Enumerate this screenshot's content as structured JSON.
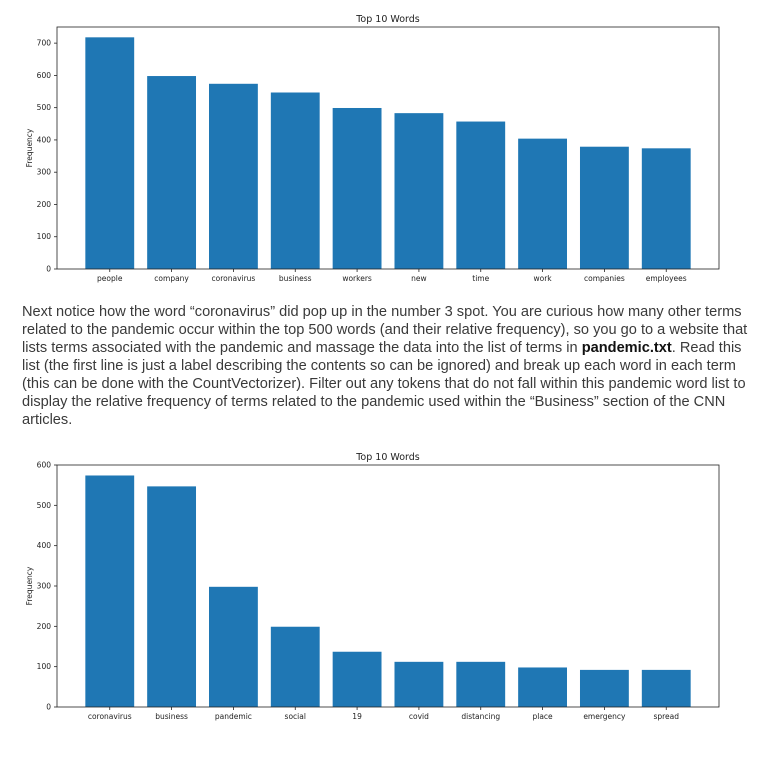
{
  "chart_data": [
    {
      "type": "bar",
      "title": "Top 10 Words",
      "xlabel": "",
      "ylabel": "Frequency",
      "categories": [
        "people",
        "company",
        "coronavirus",
        "business",
        "workers",
        "new",
        "time",
        "work",
        "companies",
        "employees"
      ],
      "values": [
        718,
        598,
        574,
        547,
        499,
        483,
        457,
        404,
        379,
        374
      ],
      "ylim": [
        0,
        750
      ],
      "yticks": [
        0,
        100,
        200,
        300,
        400,
        500,
        600,
        700
      ],
      "color": "#1f77b4",
      "grid": false,
      "legend": "none"
    },
    {
      "type": "bar",
      "title": "Top 10 Words",
      "xlabel": "",
      "ylabel": "Frequency",
      "categories": [
        "coronavirus",
        "business",
        "pandemic",
        "social",
        "19",
        "covid",
        "distancing",
        "place",
        "emergency",
        "spread"
      ],
      "values": [
        574,
        547,
        298,
        199,
        137,
        112,
        112,
        98,
        92,
        92
      ],
      "ylim": [
        0,
        600
      ],
      "yticks": [
        0,
        100,
        200,
        300,
        400,
        500,
        600
      ],
      "color": "#1f77b4",
      "grid": false,
      "legend": "none"
    }
  ],
  "paragraph": {
    "part1": "Next notice how the word “coronavirus” did pop up in the number 3 spot.  You are curious how many other terms related to the pandemic occur within the top 500 words (and their relative frequency), so you go to a website that lists terms associated with the pandemic and massage the data into the list of terms in ",
    "filename": "pandemic.txt",
    "part2": ".  Read this list (the first line is just a label describing the contents so can be ignored) and break up each word in each term (this can be done with the CountVectorizer).  Filter out any tokens that do not fall within this pandemic word list to display the relative frequency of terms related to the pandemic used within the “Business” section of the CNN articles."
  }
}
